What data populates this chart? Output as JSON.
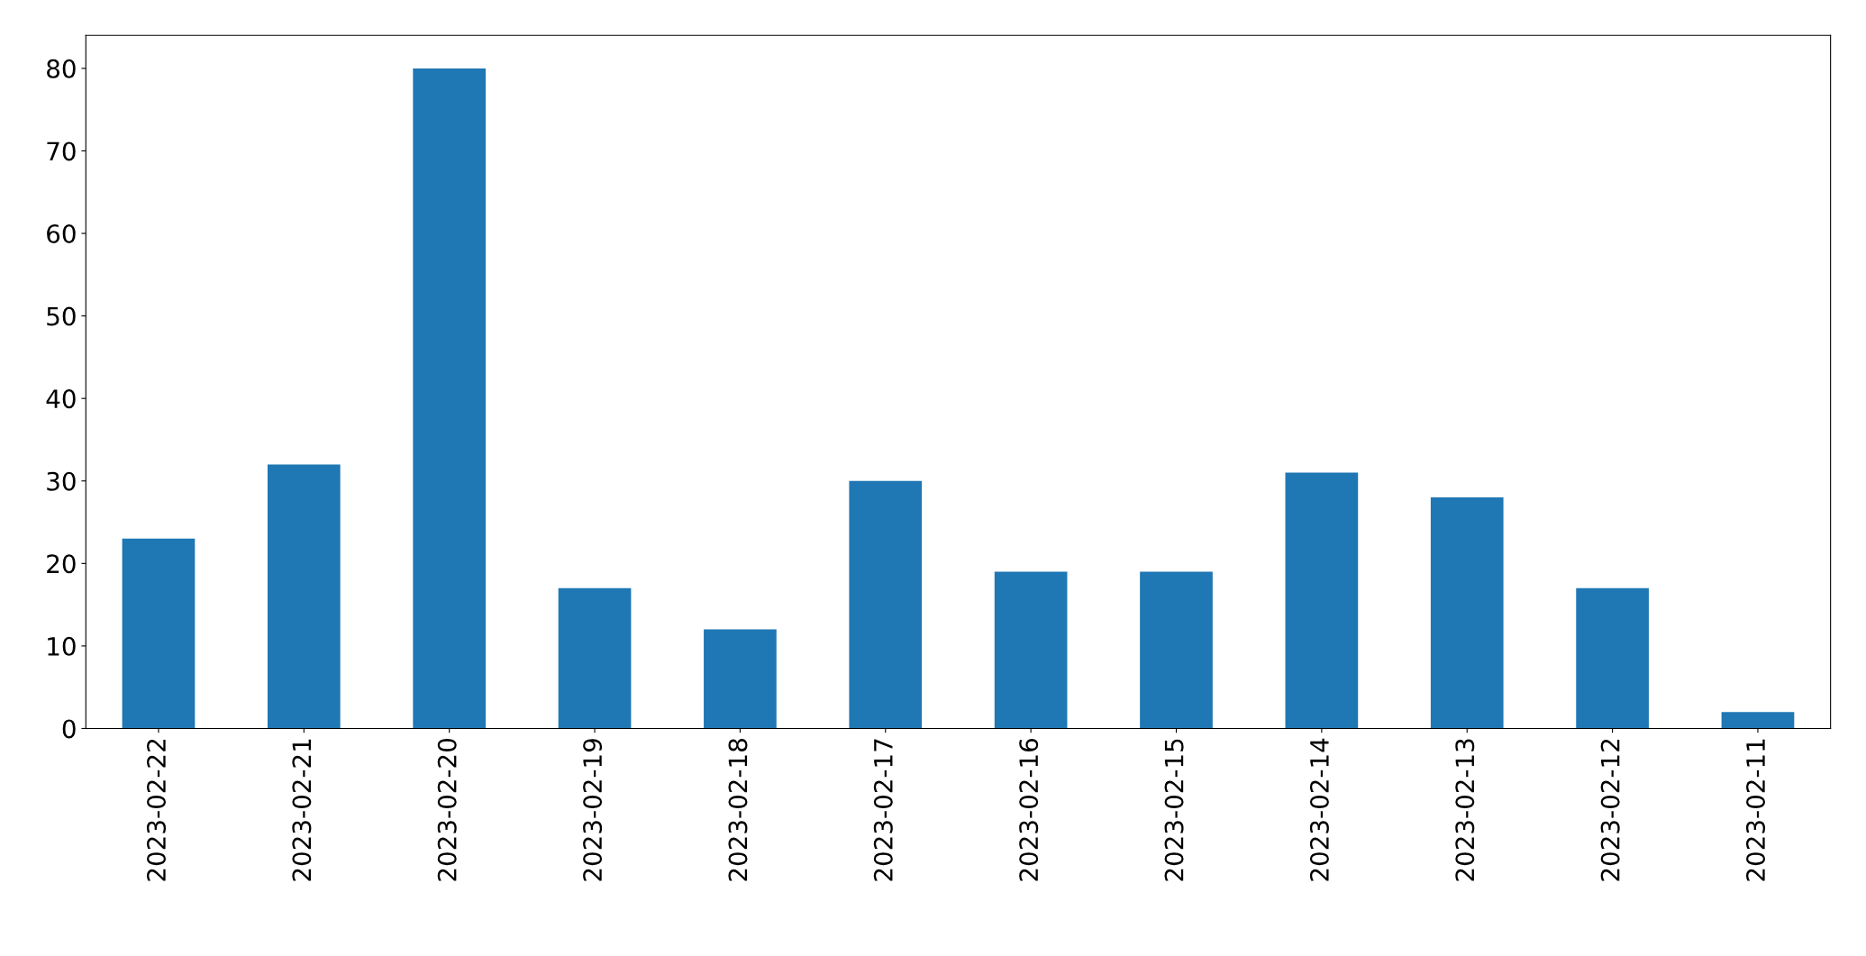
{
  "chart_data": {
    "type": "bar",
    "categories": [
      "2023-02-22",
      "2023-02-21",
      "2023-02-20",
      "2023-02-19",
      "2023-02-18",
      "2023-02-17",
      "2023-02-16",
      "2023-02-15",
      "2023-02-14",
      "2023-02-13",
      "2023-02-12",
      "2023-02-11"
    ],
    "values": [
      23,
      32,
      80,
      17,
      12,
      30,
      19,
      19,
      31,
      28,
      17,
      2
    ],
    "color": "#1f77b4",
    "ylim": [
      0,
      84
    ],
    "yticks": [
      0,
      10,
      20,
      30,
      40,
      50,
      60,
      70,
      80
    ],
    "grid": false,
    "legend": false
  }
}
